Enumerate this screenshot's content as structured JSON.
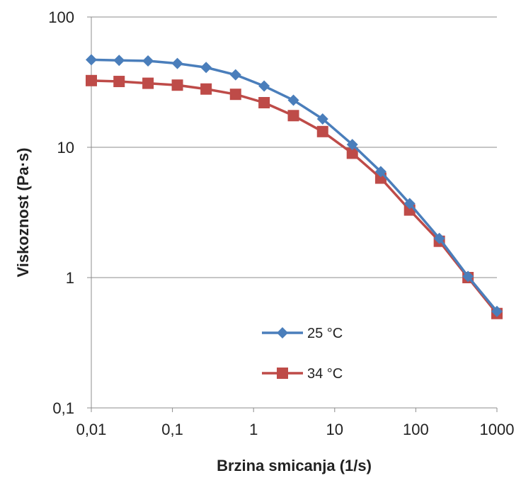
{
  "chart_data": {
    "type": "line",
    "xscale": "log",
    "yscale": "log",
    "xlabel": "Brzina smicanja (1/s)",
    "ylabel": "Viskoznost  (Pa·s)",
    "xlim": [
      0.01,
      1000
    ],
    "ylim": [
      0.1,
      100
    ],
    "xticks": [
      "0,01",
      "0,1",
      "1",
      "10",
      "100",
      "1000"
    ],
    "yticks": [
      "0,1",
      "1",
      "10",
      "100"
    ],
    "grid": "horizontal",
    "legend_position": "center-left",
    "x": [
      0.01,
      0.022,
      0.05,
      0.115,
      0.26,
      0.6,
      1.35,
      3.1,
      7.1,
      16.5,
      37,
      84,
      195,
      440,
      1000
    ],
    "series": [
      {
        "name": "25 °C",
        "color": "#4a7ebb",
        "marker": "diamond",
        "values": [
          47,
          46.5,
          46,
          44,
          41,
          36,
          29.5,
          23,
          16.5,
          10.5,
          6.5,
          3.7,
          2.0,
          1.02,
          0.55
        ]
      },
      {
        "name": "34 °C",
        "color": "#be4b48",
        "marker": "square",
        "values": [
          32.5,
          32,
          31,
          30,
          28,
          25.5,
          22,
          17.5,
          13.2,
          9,
          5.8,
          3.3,
          1.9,
          1.0,
          0.53
        ]
      }
    ]
  }
}
